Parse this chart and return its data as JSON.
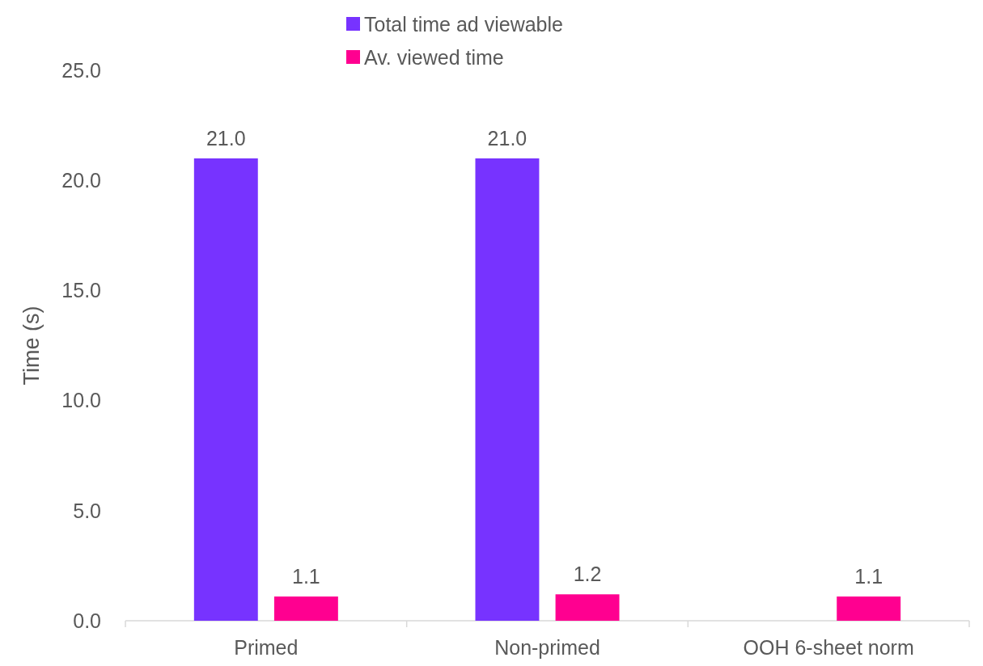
{
  "chart_data": {
    "type": "bar",
    "ylabel": "Time (s)",
    "categories": [
      "Primed",
      "Non-primed",
      "OOH 6-sheet norm"
    ],
    "series": [
      {
        "name": "Total time ad viewable",
        "color": "#7733ff",
        "values": [
          21.0,
          21.0,
          null
        ],
        "value_labels": [
          "21.0",
          "21.0",
          null
        ]
      },
      {
        "name": "Av. viewed time",
        "color": "#ff0090",
        "values": [
          1.1,
          1.2,
          1.1
        ],
        "value_labels": [
          "1.1",
          "1.2",
          "1.1"
        ]
      }
    ],
    "ylim": [
      0,
      25
    ],
    "yticks": [
      {
        "value": 0,
        "label": "0.0"
      },
      {
        "value": 5,
        "label": "5.0"
      },
      {
        "value": 10,
        "label": "10.0"
      },
      {
        "value": 15,
        "label": "15.0"
      },
      {
        "value": 20,
        "label": "20.0"
      },
      {
        "value": 25,
        "label": "25.0"
      }
    ],
    "grid": false,
    "legend": "top"
  }
}
